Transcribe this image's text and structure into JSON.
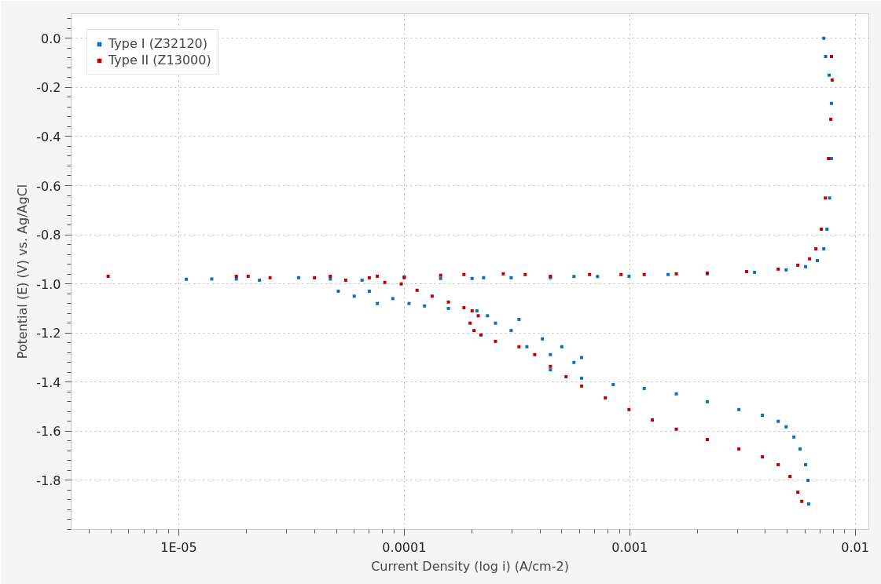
{
  "chart_data": {
    "type": "scatter",
    "xlabel": "Current Density (log i) (A/cm-2)",
    "ylabel": "Potential (E) (V) vs. Ag/AgCl",
    "log": "x",
    "grid": true,
    "legend": "top left",
    "marker": "square",
    "xlim": [
      3.33e-06,
      0.0115
    ],
    "xticks": [
      {
        "value": 1e-05,
        "label": "1E-05"
      },
      {
        "value": 0.0001,
        "label": "0.0001"
      },
      {
        "value": 0.001,
        "label": "0.001"
      },
      {
        "value": 0.01,
        "label": "0.01"
      }
    ],
    "ylim": [
      -2.0,
      0.1
    ],
    "yticks": [
      {
        "value": 0,
        "label": "0.0"
      },
      {
        "value": -0.2,
        "label": "-0.2"
      },
      {
        "value": -0.4,
        "label": "-0.4"
      },
      {
        "value": -0.6,
        "label": "-0.6"
      },
      {
        "value": -0.8,
        "label": "-0.8"
      },
      {
        "value": -1.0,
        "label": "-1.0"
      },
      {
        "value": -1.2,
        "label": "-1.2"
      },
      {
        "value": -1.4,
        "label": "-1.4"
      },
      {
        "value": -1.6,
        "label": "-1.6"
      },
      {
        "value": -1.8,
        "label": "-1.8"
      }
    ],
    "series": [
      {
        "name": "Type I (Z32120)",
        "color": "#0a6fc2",
        "x": [
          0.00726,
          0.0074,
          0.00767,
          0.00785,
          0.00785,
          0.0077,
          0.0075,
          0.00726,
          0.0068,
          0.00603,
          0.00494,
          0.00358,
          0.00221,
          0.00148,
          0.000993,
          0.00072,
          0.000566,
          0.000445,
          0.000298,
          0.000225,
          0.0002,
          0.000145,
          0.0001,
          6.5e-05,
          4.7e-05,
          3.4e-05,
          2.28e-05,
          1.8e-05,
          1.4e-05,
          1.08e-05,
          5.1e-05,
          6e-05,
          7e-05,
          7.6e-05,
          8.9e-05,
          0.000105,
          0.000123,
          0.000157,
          0.00021,
          0.000234,
          0.000254,
          0.000298,
          0.000323,
          0.00035,
          0.00041,
          0.000445,
          0.0005,
          0.000566,
          0.000612,
          0.000445,
          0.000612,
          0.000845,
          0.00116,
          0.00161,
          0.00221,
          0.00305,
          0.00388,
          0.00456,
          0.00494,
          0.00535,
          0.0057,
          0.00603,
          0.00618,
          0.00622
        ],
        "values": [
          0.0,
          -0.074,
          -0.15,
          -0.265,
          -0.49,
          -0.65,
          -0.777,
          -0.857,
          -0.905,
          -0.93,
          -0.943,
          -0.953,
          -0.959,
          -0.962,
          -0.969,
          -0.97,
          -0.97,
          -0.975,
          -0.975,
          -0.975,
          -0.978,
          -0.978,
          -0.975,
          -0.985,
          -0.98,
          -0.975,
          -0.985,
          -0.98,
          -0.98,
          -0.981,
          -1.03,
          -1.05,
          -1.03,
          -1.08,
          -1.06,
          -1.08,
          -1.09,
          -1.1,
          -1.11,
          -1.13,
          -1.16,
          -1.19,
          -1.145,
          -1.256,
          -1.224,
          -1.288,
          -1.256,
          -1.32,
          -1.3,
          -1.35,
          -1.384,
          -1.41,
          -1.426,
          -1.448,
          -1.48,
          -1.512,
          -1.535,
          -1.56,
          -1.582,
          -1.624,
          -1.672,
          -1.736,
          -1.8,
          -1.896
        ]
      },
      {
        "name": "Type II (Z13000)",
        "color": "#c00000",
        "x": [
          0.00785,
          0.00791,
          0.0078,
          0.00762,
          0.00738,
          0.00708,
          0.0067,
          0.00628,
          0.00557,
          0.00456,
          0.0033,
          0.00221,
          0.00161,
          0.00116,
          0.000916,
          0.000664,
          0.000445,
          0.000344,
          0.000275,
          0.000184,
          0.000145,
          0.0001,
          7.6e-05,
          4.7e-05,
          4e-05,
          2.54e-05,
          2.03e-05,
          1.8e-05,
          4.86e-06,
          5.5e-05,
          7e-05,
          8.2e-05,
          9.7e-05,
          0.000114,
          0.000133,
          0.000157,
          0.000184,
          0.0002,
          0.000196,
          0.000204,
          0.000213,
          0.000219,
          0.000254,
          0.000323,
          0.000379,
          0.000445,
          0.000522,
          0.000612,
          0.00078,
          0.000993,
          0.00126,
          0.00161,
          0.00221,
          0.00305,
          0.00388,
          0.00456,
          0.00514,
          0.00557,
          0.0058
        ],
        "values": [
          -0.074,
          -0.17,
          -0.33,
          -0.49,
          -0.65,
          -0.777,
          -0.857,
          -0.898,
          -0.924,
          -0.94,
          -0.95,
          -0.956,
          -0.959,
          -0.962,
          -0.962,
          -0.962,
          -0.969,
          -0.962,
          -0.959,
          -0.962,
          -0.965,
          -0.972,
          -0.969,
          -0.969,
          -0.975,
          -0.975,
          -0.969,
          -0.969,
          -0.969,
          -0.985,
          -0.975,
          -0.994,
          -1.0,
          -1.026,
          -1.05,
          -1.074,
          -1.097,
          -1.11,
          -1.16,
          -1.19,
          -1.13,
          -1.208,
          -1.234,
          -1.256,
          -1.288,
          -1.336,
          -1.378,
          -1.416,
          -1.464,
          -1.512,
          -1.554,
          -1.592,
          -1.634,
          -1.672,
          -1.704,
          -1.736,
          -1.784,
          -1.848,
          -1.886
        ]
      }
    ]
  }
}
